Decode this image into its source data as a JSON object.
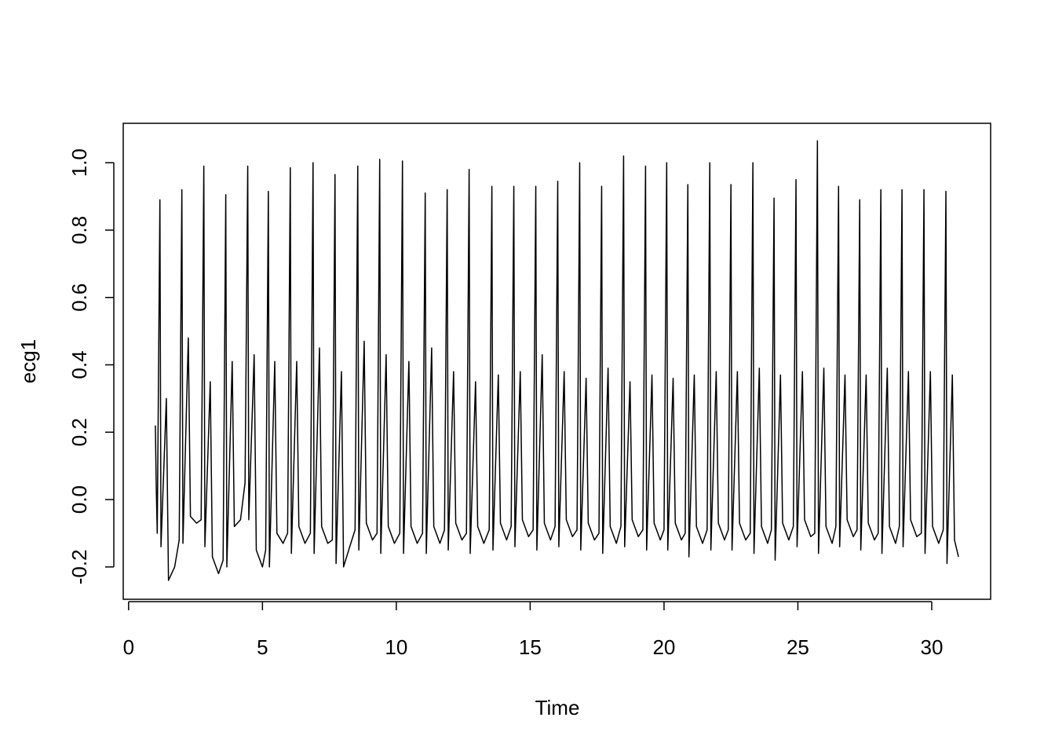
{
  "chart_data": {
    "type": "line",
    "xlabel": "Time",
    "ylabel": "ecg1",
    "color": "#000000",
    "xlim": [
      -0.2,
      32.2
    ],
    "ylim": [
      -0.296,
      1.117
    ],
    "xticks": [
      0,
      5,
      10,
      15,
      20,
      25,
      30
    ],
    "yticks": [
      -0.2,
      {
        "value": 0,
        "label": "0.0"
      },
      0.2,
      0.4,
      0.6,
      0.8,
      {
        "value": 1,
        "label": "1.0"
      }
    ],
    "x": [
      1.0,
      1.03,
      1.07,
      1.17,
      1.21,
      1.41,
      1.49,
      1.72,
      1.89,
      1.99,
      2.03,
      2.23,
      2.31,
      2.54,
      2.71,
      2.81,
      2.85,
      3.05,
      3.13,
      3.36,
      3.53,
      3.63,
      3.67,
      3.87,
      3.95,
      4.18,
      4.35,
      4.45,
      4.49,
      4.69,
      4.77,
      5.0,
      5.12,
      5.22,
      5.26,
      5.46,
      5.54,
      5.77,
      5.94,
      6.04,
      6.08,
      6.28,
      6.36,
      6.59,
      6.79,
      6.89,
      6.93,
      7.13,
      7.21,
      7.44,
      7.61,
      7.71,
      7.75,
      7.95,
      8.03,
      8.26,
      8.46,
      8.56,
      8.6,
      8.8,
      8.88,
      9.11,
      9.28,
      9.38,
      9.42,
      9.62,
      9.7,
      9.93,
      10.13,
      10.23,
      10.27,
      10.47,
      10.55,
      10.78,
      10.98,
      11.08,
      11.12,
      11.32,
      11.4,
      11.63,
      11.8,
      11.9,
      11.94,
      12.14,
      12.22,
      12.45,
      12.62,
      12.72,
      12.76,
      12.96,
      13.04,
      13.27,
      13.47,
      13.57,
      13.61,
      13.81,
      13.89,
      14.12,
      14.29,
      14.39,
      14.43,
      14.63,
      14.71,
      14.94,
      15.11,
      15.21,
      15.25,
      15.45,
      15.53,
      15.76,
      15.93,
      16.03,
      16.07,
      16.27,
      16.35,
      16.58,
      16.75,
      16.85,
      16.89,
      17.09,
      17.17,
      17.4,
      17.57,
      17.67,
      17.71,
      17.91,
      17.99,
      18.22,
      18.39,
      18.49,
      18.53,
      18.73,
      18.81,
      19.04,
      19.21,
      19.31,
      19.35,
      19.55,
      19.63,
      19.86,
      20.0,
      20.1,
      20.14,
      20.34,
      20.42,
      20.65,
      20.79,
      20.89,
      20.93,
      21.13,
      21.21,
      21.44,
      21.61,
      21.71,
      21.75,
      21.95,
      22.03,
      22.26,
      22.4,
      22.5,
      22.54,
      22.74,
      22.82,
      23.05,
      23.22,
      23.32,
      23.36,
      23.56,
      23.64,
      23.87,
      24.01,
      24.11,
      24.15,
      24.35,
      24.43,
      24.66,
      24.83,
      24.93,
      24.97,
      25.17,
      25.25,
      25.48,
      25.63,
      25.73,
      25.77,
      25.97,
      26.05,
      26.28,
      26.42,
      26.52,
      26.56,
      26.76,
      26.84,
      27.07,
      27.21,
      27.31,
      27.35,
      27.55,
      27.63,
      27.86,
      28.0,
      28.1,
      28.14,
      28.34,
      28.42,
      28.65,
      28.79,
      28.89,
      28.93,
      29.13,
      29.21,
      29.44,
      29.61,
      29.71,
      29.75,
      29.95,
      30.03,
      30.26,
      30.43,
      30.53,
      30.57,
      30.77,
      30.85,
      31.0
    ],
    "values": [
      0.22,
      0.05,
      -0.1,
      0.89,
      -0.14,
      0.3,
      -0.24,
      -0.2,
      -0.12,
      0.92,
      -0.13,
      0.48,
      -0.05,
      -0.07,
      -0.06,
      0.99,
      -0.14,
      0.35,
      -0.17,
      -0.22,
      -0.18,
      0.905,
      -0.2,
      0.41,
      -0.08,
      -0.06,
      0.05,
      0.99,
      -0.06,
      0.43,
      -0.15,
      -0.2,
      -0.15,
      0.915,
      -0.2,
      0.41,
      -0.1,
      -0.13,
      -0.1,
      0.985,
      -0.16,
      0.41,
      -0.08,
      -0.13,
      -0.1,
      1.0,
      -0.16,
      0.45,
      -0.08,
      -0.13,
      -0.12,
      0.965,
      -0.19,
      0.38,
      -0.2,
      -0.14,
      -0.09,
      0.99,
      -0.15,
      0.47,
      -0.07,
      -0.12,
      -0.1,
      1.01,
      -0.16,
      0.43,
      -0.08,
      -0.13,
      -0.1,
      1.005,
      -0.16,
      0.41,
      -0.08,
      -0.13,
      -0.1,
      0.91,
      -0.16,
      0.45,
      -0.08,
      -0.13,
      -0.09,
      0.92,
      -0.15,
      0.38,
      -0.07,
      -0.12,
      -0.1,
      0.98,
      -0.16,
      0.35,
      -0.08,
      -0.13,
      -0.09,
      0.93,
      -0.15,
      0.37,
      -0.07,
      -0.12,
      -0.08,
      0.93,
      -0.14,
      0.38,
      -0.06,
      -0.11,
      -0.09,
      0.93,
      -0.15,
      0.43,
      -0.07,
      -0.12,
      -0.08,
      0.945,
      -0.14,
      0.38,
      -0.06,
      -0.11,
      -0.09,
      1.0,
      -0.15,
      0.36,
      -0.07,
      -0.12,
      -0.1,
      0.93,
      -0.16,
      0.39,
      -0.08,
      -0.13,
      -0.08,
      1.02,
      -0.14,
      0.35,
      -0.06,
      -0.11,
      -0.09,
      0.99,
      -0.15,
      0.37,
      -0.07,
      -0.12,
      -0.09,
      1.0,
      -0.15,
      0.36,
      -0.07,
      -0.12,
      -0.1,
      0.935,
      -0.17,
      0.37,
      -0.08,
      -0.13,
      -0.09,
      1.0,
      -0.15,
      0.38,
      -0.07,
      -0.12,
      -0.09,
      0.935,
      -0.15,
      0.38,
      -0.07,
      -0.12,
      -0.1,
      1.0,
      -0.16,
      0.39,
      -0.08,
      -0.13,
      -0.09,
      0.895,
      -0.18,
      0.37,
      -0.07,
      -0.12,
      -0.08,
      0.95,
      -0.14,
      0.38,
      -0.06,
      -0.11,
      -0.1,
      1.065,
      -0.16,
      0.39,
      -0.08,
      -0.13,
      -0.08,
      0.93,
      -0.14,
      0.37,
      -0.06,
      -0.11,
      -0.09,
      0.89,
      -0.15,
      0.37,
      -0.07,
      -0.12,
      -0.1,
      0.92,
      -0.16,
      0.39,
      -0.08,
      -0.13,
      -0.08,
      0.92,
      -0.14,
      0.38,
      -0.06,
      -0.11,
      -0.1,
      0.92,
      -0.16,
      0.38,
      -0.08,
      -0.13,
      -0.09,
      0.915,
      -0.19,
      0.37,
      -0.12,
      -0.17
    ]
  }
}
